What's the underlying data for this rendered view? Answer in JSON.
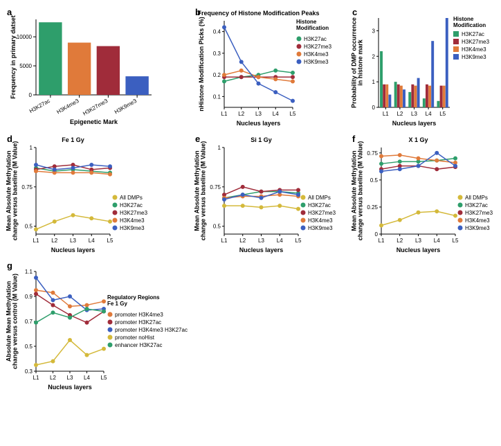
{
  "colors": {
    "H3K27ac": "#2e9e6b",
    "H3K4me3": "#e07a3a",
    "H3K27me3": "#a02c3a",
    "H3K9me3": "#3b5fc0",
    "AllDMPs": "#d4b93a",
    "promoter_H3K4me3": "#e07a3a",
    "promoter_H3K27ac": "#a02c3a",
    "promoter_H3K4me3_H3K27ac": "#3b5fc0",
    "promoter_noHist": "#d4b93a",
    "enhancer_H3K27ac": "#2e9e6b",
    "axis": "#000000",
    "bg": "#ffffff"
  },
  "panel_a": {
    "label": "a",
    "type": "bar",
    "x_title": "Epigenetic Mark",
    "y_title": "Frequency in primary datset",
    "categories": [
      "H3K27ac",
      "H3K4me3",
      "H3K27me3",
      "H3K9me3"
    ],
    "values": [
      12500,
      9000,
      8400,
      3200
    ],
    "bar_colors": [
      "#2e9e6b",
      "#e07a3a",
      "#a02c3a",
      "#3b5fc0"
    ],
    "ylim": [
      0,
      13000
    ],
    "yticks": [
      0,
      5000,
      10000
    ],
    "bar_width": 0.8
  },
  "panel_b": {
    "label": "b",
    "type": "line",
    "title": "Frequency of Histone Modification Peaks",
    "x_title": "Nucleus layers",
    "y_title": "nHistone Modification Picks (%)",
    "categories": [
      "L1",
      "L2",
      "L3",
      "L4",
      "L5"
    ],
    "ylim": [
      0.05,
      0.45
    ],
    "yticks": [
      0.1,
      0.2,
      0.3,
      0.4
    ],
    "legend_title": "Histone Modification",
    "series": [
      {
        "name": "H3K27ac",
        "color": "#2e9e6b",
        "values": [
          0.17,
          0.19,
          0.2,
          0.22,
          0.21
        ]
      },
      {
        "name": "H3K27me3",
        "color": "#a02c3a",
        "values": [
          0.19,
          0.19,
          0.19,
          0.19,
          0.19
        ]
      },
      {
        "name": "H3K4me3",
        "color": "#e07a3a",
        "values": [
          0.2,
          0.22,
          0.19,
          0.18,
          0.17
        ]
      },
      {
        "name": "H3K9me3",
        "color": "#3b5fc0",
        "values": [
          0.42,
          0.26,
          0.16,
          0.12,
          0.08
        ]
      }
    ]
  },
  "panel_c": {
    "label": "c",
    "type": "grouped-bar",
    "x_title": "Nucleus layers",
    "y_title": "Probability of DMP occurrence in histone mark",
    "categories": [
      "L1",
      "L2",
      "L3",
      "L4",
      "L5"
    ],
    "ylim": [
      0,
      3.5
    ],
    "yticks": [
      0,
      1,
      2,
      3
    ],
    "legend_title": "Histone Modification",
    "series": [
      {
        "name": "H3K27ac",
        "color": "#2e9e6b",
        "values": [
          2.2,
          1.0,
          0.6,
          0.35,
          0.25
        ]
      },
      {
        "name": "H3K27me3",
        "color": "#a02c3a",
        "values": [
          0.9,
          0.9,
          0.9,
          0.9,
          0.85
        ]
      },
      {
        "name": "H3K4me3",
        "color": "#e07a3a",
        "values": [
          0.9,
          0.85,
          0.85,
          0.85,
          0.85
        ]
      },
      {
        "name": "H3K9me3",
        "color": "#3b5fc0",
        "values": [
          0.5,
          0.7,
          1.15,
          2.6,
          3.5
        ]
      }
    ]
  },
  "panel_d": {
    "label": "d",
    "type": "line",
    "title": "Fe 1 Gy",
    "x_title": "Nucleus layers",
    "y_title": "Mean Absolute Methylation change versus baseline (M Value)",
    "categories": [
      "L1",
      "L2",
      "L3",
      "L4",
      "L5"
    ],
    "ylim": [
      0.45,
      1.0
    ],
    "yticks": [
      0.5,
      0.75,
      1.0
    ],
    "legend_items": [
      "All DMPs",
      "H3K27ac",
      "H3K27me3",
      "H3K4me3",
      "H3K9me3"
    ],
    "series": [
      {
        "name": "All DMPs",
        "color": "#d4b93a",
        "values": [
          0.48,
          0.53,
          0.57,
          0.55,
          0.53
        ]
      },
      {
        "name": "H3K27ac",
        "color": "#2e9e6b",
        "values": [
          0.87,
          0.85,
          0.86,
          0.85,
          0.84
        ]
      },
      {
        "name": "H3K27me3",
        "color": "#a02c3a",
        "values": [
          0.86,
          0.88,
          0.89,
          0.86,
          0.87
        ]
      },
      {
        "name": "H3K4me3",
        "color": "#e07a3a",
        "values": [
          0.85,
          0.84,
          0.84,
          0.84,
          0.83
        ]
      },
      {
        "name": "H3K9me3",
        "color": "#3b5fc0",
        "values": [
          0.89,
          0.86,
          0.87,
          0.89,
          0.88
        ]
      }
    ]
  },
  "panel_e": {
    "label": "e",
    "type": "line",
    "title": "Si 1 Gy",
    "x_title": "Nucleus layers",
    "y_title": "Mean Absolute Methylation change versus baseline (M Value)",
    "categories": [
      "L1",
      "L2",
      "L3",
      "L4",
      "L5"
    ],
    "ylim": [
      0.45,
      1.0
    ],
    "yticks": [
      0.5,
      0.75,
      1.0
    ],
    "legend_items": [
      "All DMPs",
      "H3K27ac",
      "H3K27me3",
      "H3K4me3",
      "H3K9me3"
    ],
    "series": [
      {
        "name": "All DMPs",
        "color": "#d4b93a",
        "values": [
          0.63,
          0.63,
          0.62,
          0.63,
          0.61
        ]
      },
      {
        "name": "H3K27ac",
        "color": "#2e9e6b",
        "values": [
          0.68,
          0.7,
          0.72,
          0.72,
          0.71
        ]
      },
      {
        "name": "H3K27me3",
        "color": "#a02c3a",
        "values": [
          0.7,
          0.75,
          0.72,
          0.73,
          0.73
        ]
      },
      {
        "name": "H3K4me3",
        "color": "#e07a3a",
        "values": [
          0.68,
          0.69,
          0.69,
          0.7,
          0.69
        ]
      },
      {
        "name": "H3K9me3",
        "color": "#3b5fc0",
        "values": [
          0.67,
          0.7,
          0.68,
          0.72,
          0.7
        ]
      }
    ]
  },
  "panel_f": {
    "label": "f",
    "type": "line",
    "title": "X 1 Gy",
    "x_title": "Nucleus layers",
    "y_title": "Mean Absolute Methylation change versus baseline (M Value)",
    "categories": [
      "L1",
      "L2",
      "L3",
      "L4",
      "L5"
    ],
    "ylim": [
      0.0,
      0.8
    ],
    "yticks": [
      0.0,
      0.25,
      0.5,
      0.75
    ],
    "legend_items": [
      "All DMPs",
      "H3K27ac",
      "H3K27me3",
      "H3K4me3",
      "H3K9me3"
    ],
    "series": [
      {
        "name": "All DMPs",
        "color": "#d4b93a",
        "values": [
          0.08,
          0.13,
          0.2,
          0.21,
          0.17
        ]
      },
      {
        "name": "H3K27ac",
        "color": "#2e9e6b",
        "values": [
          0.65,
          0.67,
          0.67,
          0.68,
          0.7
        ]
      },
      {
        "name": "H3K27me3",
        "color": "#a02c3a",
        "values": [
          0.6,
          0.63,
          0.63,
          0.6,
          0.62
        ]
      },
      {
        "name": "H3K4me3",
        "color": "#e07a3a",
        "values": [
          0.72,
          0.73,
          0.7,
          0.68,
          0.66
        ]
      },
      {
        "name": "H3K9me3",
        "color": "#3b5fc0",
        "values": [
          0.58,
          0.6,
          0.63,
          0.75,
          0.63
        ]
      }
    ]
  },
  "panel_g": {
    "label": "g",
    "type": "line",
    "x_title": "Nucleus layers",
    "y_title": "Absolute Mean Methylation change versus control (M Value)",
    "categories": [
      "L1",
      "L2",
      "L3",
      "L4",
      "L5"
    ],
    "ylim": [
      0.3,
      1.1
    ],
    "yticks": [
      0.3,
      0.5,
      0.7,
      0.9,
      1.1
    ],
    "legend_title": "Regulatory Regions Fe 1 Gy",
    "series": [
      {
        "name": "promoter H3K4me3",
        "color": "#e07a3a",
        "values": [
          0.95,
          0.93,
          0.82,
          0.83,
          0.86
        ]
      },
      {
        "name": "promoter H3K27ac",
        "color": "#a02c3a",
        "values": [
          0.92,
          0.83,
          0.75,
          0.69,
          0.78
        ]
      },
      {
        "name": "promoter H3K4me3 H3K27ac",
        "color": "#3b5fc0",
        "values": [
          1.05,
          0.87,
          0.9,
          0.79,
          0.8
        ]
      },
      {
        "name": "promoter noHist",
        "color": "#d4b93a",
        "values": [
          0.35,
          0.38,
          0.55,
          0.43,
          0.48
        ]
      },
      {
        "name": "enhancer H3K27ac",
        "color": "#2e9e6b",
        "values": [
          0.69,
          0.77,
          0.73,
          0.8,
          0.78
        ]
      }
    ]
  }
}
